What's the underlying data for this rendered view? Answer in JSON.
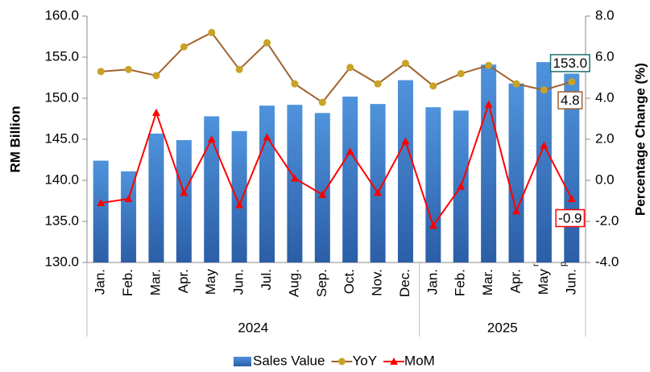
{
  "chart_data": {
    "type": "bar-line",
    "categories": [
      "Jan.",
      "Feb.",
      "Mar.",
      "Apr.",
      "May",
      "Jun.",
      "Jul.",
      "Aug.",
      "Sep.",
      "Oct.",
      "Nov.",
      "Dec.",
      "Jan.",
      "Feb.",
      "Mar.",
      "Apr.",
      "May",
      "Jun."
    ],
    "category_superscripts": [
      null,
      null,
      null,
      null,
      null,
      null,
      null,
      null,
      null,
      null,
      null,
      null,
      null,
      null,
      null,
      null,
      "r",
      "p"
    ],
    "category_groups": [
      "2024",
      "2024",
      "2024",
      "2024",
      "2024",
      "2024",
      "2024",
      "2024",
      "2024",
      "2024",
      "2024",
      "2024",
      "2025",
      "2025",
      "2025",
      "2025",
      "2025",
      "2025"
    ],
    "ylabel": "RM Billion",
    "y2label": "Percentage Change (%)",
    "ylim": [
      130,
      160
    ],
    "yticks": [
      {
        "value": 130,
        "label": "130.0"
      },
      {
        "value": 135,
        "label": "135.0"
      },
      {
        "value": 140,
        "label": "140.0"
      },
      {
        "value": 145,
        "label": "145.0"
      },
      {
        "value": 150,
        "label": "150.0"
      },
      {
        "value": 155,
        "label": "155.0"
      },
      {
        "value": 160,
        "label": "160.0"
      }
    ],
    "y2lim": [
      -4,
      8
    ],
    "y2ticks": [
      {
        "value": -4,
        "label": "-4.0"
      },
      {
        "value": -2,
        "label": "-2.0"
      },
      {
        "value": 0,
        "label": "0.0"
      },
      {
        "value": 2,
        "label": "2.0"
      },
      {
        "value": 4,
        "label": "4.0"
      },
      {
        "value": 6,
        "label": "6.0"
      },
      {
        "value": 8,
        "label": "8.0"
      }
    ],
    "series": [
      {
        "name": "Sales Value",
        "kind": "bar",
        "color": "#3a7ccc",
        "label_border": "#1f6e6e",
        "values": [
          142.4,
          141.1,
          145.7,
          144.9,
          147.8,
          146.0,
          149.1,
          149.2,
          148.2,
          150.2,
          149.3,
          152.2,
          148.9,
          148.5,
          154.1,
          151.8,
          154.4,
          153.0
        ],
        "value_labels": [
          null,
          null,
          null,
          null,
          null,
          null,
          null,
          null,
          null,
          null,
          null,
          null,
          null,
          null,
          null,
          null,
          null,
          "153.0"
        ]
      },
      {
        "name": "YoY",
        "kind": "line",
        "axis": "y2",
        "color": "#a0622d",
        "marker_color": "#c9a227",
        "marker": "circle",
        "values": [
          5.3,
          5.4,
          5.1,
          6.5,
          7.2,
          5.4,
          6.7,
          4.7,
          3.8,
          5.5,
          4.7,
          5.7,
          4.6,
          5.2,
          5.6,
          4.7,
          4.4,
          4.8
        ],
        "value_labels": [
          null,
          null,
          null,
          null,
          null,
          null,
          null,
          null,
          null,
          null,
          null,
          null,
          null,
          null,
          null,
          null,
          null,
          "4.8"
        ]
      },
      {
        "name": "MoM",
        "kind": "line",
        "axis": "y2",
        "color": "#ff0000",
        "marker_color": "#ff0000",
        "marker": "triangle",
        "values": [
          -1.1,
          -0.9,
          3.3,
          -0.6,
          2.0,
          -1.2,
          2.1,
          0.1,
          -0.7,
          1.4,
          -0.6,
          1.9,
          -2.2,
          -0.3,
          3.7,
          -1.5,
          1.7,
          -0.9
        ],
        "value_labels": [
          null,
          null,
          null,
          null,
          null,
          null,
          null,
          null,
          null,
          null,
          null,
          null,
          null,
          null,
          null,
          null,
          null,
          "-0.9"
        ]
      }
    ]
  }
}
